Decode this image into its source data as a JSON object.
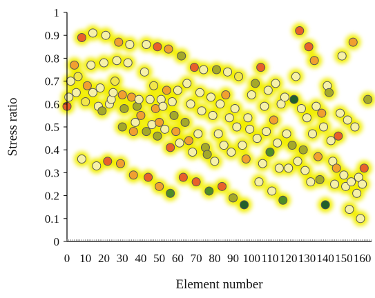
{
  "chart_data": {
    "type": "scatter",
    "title": "",
    "xlabel": "Element number",
    "ylabel": "Stress ratio",
    "xlim": [
      0,
      165
    ],
    "ylim": [
      0,
      1
    ],
    "x_ticks": [
      "0",
      "10",
      "20",
      "30",
      "40",
      "50",
      "60",
      "70",
      "80",
      "90",
      "100",
      "110",
      "120",
      "130",
      "140",
      "150",
      "160"
    ],
    "y_ticks": [
      "0",
      "0.1",
      "0.2",
      "0.3",
      "0.4",
      "0.5",
      "0.6",
      "0.7",
      "0.8",
      "0.9",
      "1"
    ],
    "grid": false,
    "legend": "none",
    "glow_color": "#f2ee00",
    "colors": {
      "red": "#e8602a",
      "orange": "#f0a030",
      "yellow": "#f2e64a",
      "light": "#f6f1a8",
      "olive": "#a4a82a",
      "green": "#4e8c26",
      "dark": "#22602a"
    },
    "points": [
      {
        "x": 0,
        "y": 0.59,
        "c": "red"
      },
      {
        "x": 1,
        "y": 0.63,
        "c": "light"
      },
      {
        "x": 2,
        "y": 0.7,
        "c": "light"
      },
      {
        "x": 4,
        "y": 0.77,
        "c": "orange"
      },
      {
        "x": 5,
        "y": 0.65,
        "c": "light"
      },
      {
        "x": 6,
        "y": 0.72,
        "c": "yellow"
      },
      {
        "x": 8,
        "y": 0.89,
        "c": "red"
      },
      {
        "x": 8,
        "y": 0.36,
        "c": "light"
      },
      {
        "x": 10,
        "y": 0.61,
        "c": "yellow"
      },
      {
        "x": 11,
        "y": 0.68,
        "c": "orange"
      },
      {
        "x": 13,
        "y": 0.77,
        "c": "light"
      },
      {
        "x": 14,
        "y": 0.91,
        "c": "light"
      },
      {
        "x": 14,
        "y": 0.65,
        "c": "light"
      },
      {
        "x": 16,
        "y": 0.33,
        "c": "light"
      },
      {
        "x": 17,
        "y": 0.59,
        "c": "light"
      },
      {
        "x": 18,
        "y": 0.67,
        "c": "light"
      },
      {
        "x": 19,
        "y": 0.57,
        "c": "olive"
      },
      {
        "x": 20,
        "y": 0.78,
        "c": "light"
      },
      {
        "x": 21,
        "y": 0.9,
        "c": "light"
      },
      {
        "x": 22,
        "y": 0.35,
        "c": "red"
      },
      {
        "x": 23,
        "y": 0.6,
        "c": "light"
      },
      {
        "x": 24,
        "y": 0.62,
        "c": "light"
      },
      {
        "x": 25,
        "y": 0.65,
        "c": "light"
      },
      {
        "x": 26,
        "y": 0.7,
        "c": "yellow"
      },
      {
        "x": 27,
        "y": 0.79,
        "c": "light"
      },
      {
        "x": 28,
        "y": 0.87,
        "c": "orange"
      },
      {
        "x": 29,
        "y": 0.34,
        "c": "orange"
      },
      {
        "x": 30,
        "y": 0.64,
        "c": "orange"
      },
      {
        "x": 30,
        "y": 0.5,
        "c": "olive"
      },
      {
        "x": 31,
        "y": 0.58,
        "c": "olive"
      },
      {
        "x": 33,
        "y": 0.78,
        "c": "light"
      },
      {
        "x": 34,
        "y": 0.86,
        "c": "light"
      },
      {
        "x": 35,
        "y": 0.63,
        "c": "orange"
      },
      {
        "x": 36,
        "y": 0.29,
        "c": "orange"
      },
      {
        "x": 36,
        "y": 0.48,
        "c": "orange"
      },
      {
        "x": 37,
        "y": 0.52,
        "c": "light"
      },
      {
        "x": 38,
        "y": 0.59,
        "c": "olive"
      },
      {
        "x": 39,
        "y": 0.62,
        "c": "light"
      },
      {
        "x": 40,
        "y": 0.55,
        "c": "orange"
      },
      {
        "x": 42,
        "y": 0.74,
        "c": "light"
      },
      {
        "x": 43,
        "y": 0.86,
        "c": "light"
      },
      {
        "x": 43,
        "y": 0.48,
        "c": "olive"
      },
      {
        "x": 44,
        "y": 0.28,
        "c": "red"
      },
      {
        "x": 45,
        "y": 0.62,
        "c": "light"
      },
      {
        "x": 46,
        "y": 0.51,
        "c": "light"
      },
      {
        "x": 47,
        "y": 0.68,
        "c": "yellow"
      },
      {
        "x": 48,
        "y": 0.58,
        "c": "orange"
      },
      {
        "x": 49,
        "y": 0.85,
        "c": "red"
      },
      {
        "x": 49,
        "y": 0.46,
        "c": "olive"
      },
      {
        "x": 50,
        "y": 0.24,
        "c": "orange"
      },
      {
        "x": 50,
        "y": 0.52,
        "c": "orange"
      },
      {
        "x": 51,
        "y": 0.62,
        "c": "light"
      },
      {
        "x": 52,
        "y": 0.59,
        "c": "light"
      },
      {
        "x": 53,
        "y": 0.49,
        "c": "light"
      },
      {
        "x": 54,
        "y": 0.66,
        "c": "orange"
      },
      {
        "x": 55,
        "y": 0.84,
        "c": "orange"
      },
      {
        "x": 56,
        "y": 0.41,
        "c": "red"
      },
      {
        "x": 56,
        "y": 0.21,
        "c": "green"
      },
      {
        "x": 57,
        "y": 0.61,
        "c": "light"
      },
      {
        "x": 58,
        "y": 0.55,
        "c": "olive"
      },
      {
        "x": 59,
        "y": 0.48,
        "c": "orange"
      },
      {
        "x": 60,
        "y": 0.66,
        "c": "light"
      },
      {
        "x": 61,
        "y": 0.43,
        "c": "light"
      },
      {
        "x": 62,
        "y": 0.81,
        "c": "olive"
      },
      {
        "x": 63,
        "y": 0.28,
        "c": "red"
      },
      {
        "x": 64,
        "y": 0.52,
        "c": "olive"
      },
      {
        "x": 65,
        "y": 0.69,
        "c": "light"
      },
      {
        "x": 66,
        "y": 0.44,
        "c": "orange"
      },
      {
        "x": 67,
        "y": 0.6,
        "c": "light"
      },
      {
        "x": 68,
        "y": 0.39,
        "c": "light"
      },
      {
        "x": 69,
        "y": 0.76,
        "c": "red"
      },
      {
        "x": 70,
        "y": 0.26,
        "c": "red"
      },
      {
        "x": 71,
        "y": 0.47,
        "c": "light"
      },
      {
        "x": 72,
        "y": 0.65,
        "c": "light"
      },
      {
        "x": 73,
        "y": 0.57,
        "c": "light"
      },
      {
        "x": 74,
        "y": 0.75,
        "c": "light"
      },
      {
        "x": 75,
        "y": 0.41,
        "c": "olive"
      },
      {
        "x": 76,
        "y": 0.38,
        "c": "olive"
      },
      {
        "x": 77,
        "y": 0.22,
        "c": "green"
      },
      {
        "x": 78,
        "y": 0.63,
        "c": "light"
      },
      {
        "x": 79,
        "y": 0.55,
        "c": "light"
      },
      {
        "x": 80,
        "y": 0.35,
        "c": "light"
      },
      {
        "x": 81,
        "y": 0.75,
        "c": "olive"
      },
      {
        "x": 82,
        "y": 0.47,
        "c": "light"
      },
      {
        "x": 83,
        "y": 0.6,
        "c": "light"
      },
      {
        "x": 84,
        "y": 0.24,
        "c": "red"
      },
      {
        "x": 85,
        "y": 0.42,
        "c": "light"
      },
      {
        "x": 86,
        "y": 0.64,
        "c": "orange"
      },
      {
        "x": 87,
        "y": 0.74,
        "c": "light"
      },
      {
        "x": 88,
        "y": 0.54,
        "c": "light"
      },
      {
        "x": 89,
        "y": 0.39,
        "c": "light"
      },
      {
        "x": 90,
        "y": 0.19,
        "c": "olive"
      },
      {
        "x": 91,
        "y": 0.58,
        "c": "light"
      },
      {
        "x": 92,
        "y": 0.5,
        "c": "light"
      },
      {
        "x": 93,
        "y": 0.72,
        "c": "yellow"
      },
      {
        "x": 95,
        "y": 0.42,
        "c": "light"
      },
      {
        "x": 96,
        "y": 0.16,
        "c": "dark"
      },
      {
        "x": 97,
        "y": 0.36,
        "c": "orange"
      },
      {
        "x": 98,
        "y": 0.54,
        "c": "light"
      },
      {
        "x": 99,
        "y": 0.49,
        "c": "light"
      },
      {
        "x": 100,
        "y": 0.64,
        "c": "light"
      },
      {
        "x": 102,
        "y": 0.69,
        "c": "olive"
      },
      {
        "x": 103,
        "y": 0.45,
        "c": "light"
      },
      {
        "x": 104,
        "y": 0.26,
        "c": "light"
      },
      {
        "x": 105,
        "y": 0.76,
        "c": "red"
      },
      {
        "x": 106,
        "y": 0.34,
        "c": "light"
      },
      {
        "x": 107,
        "y": 0.59,
        "c": "light"
      },
      {
        "x": 108,
        "y": 0.48,
        "c": "light"
      },
      {
        "x": 109,
        "y": 0.66,
        "c": "light"
      },
      {
        "x": 110,
        "y": 0.39,
        "c": "green"
      },
      {
        "x": 111,
        "y": 0.22,
        "c": "light"
      },
      {
        "x": 112,
        "y": 0.53,
        "c": "orange"
      },
      {
        "x": 113,
        "y": 0.69,
        "c": "light"
      },
      {
        "x": 114,
        "y": 0.43,
        "c": "light"
      },
      {
        "x": 115,
        "y": 0.32,
        "c": "light"
      },
      {
        "x": 116,
        "y": 0.6,
        "c": "light"
      },
      {
        "x": 117,
        "y": 0.18,
        "c": "green"
      },
      {
        "x": 118,
        "y": 0.63,
        "c": "light"
      },
      {
        "x": 119,
        "y": 0.47,
        "c": "light"
      },
      {
        "x": 120,
        "y": 0.32,
        "c": "light"
      },
      {
        "x": 122,
        "y": 0.42,
        "c": "olive"
      },
      {
        "x": 123,
        "y": 0.62,
        "c": "dark"
      },
      {
        "x": 124,
        "y": 0.72,
        "c": "light"
      },
      {
        "x": 125,
        "y": 0.35,
        "c": "light"
      },
      {
        "x": 126,
        "y": 0.92,
        "c": "red"
      },
      {
        "x": 127,
        "y": 0.58,
        "c": "light"
      },
      {
        "x": 128,
        "y": 0.4,
        "c": "olive"
      },
      {
        "x": 129,
        "y": 0.31,
        "c": "light"
      },
      {
        "x": 130,
        "y": 0.54,
        "c": "light"
      },
      {
        "x": 131,
        "y": 0.85,
        "c": "red"
      },
      {
        "x": 132,
        "y": 0.26,
        "c": "light"
      },
      {
        "x": 133,
        "y": 0.47,
        "c": "light"
      },
      {
        "x": 134,
        "y": 0.79,
        "c": "orange"
      },
      {
        "x": 135,
        "y": 0.59,
        "c": "light"
      },
      {
        "x": 136,
        "y": 0.37,
        "c": "orange"
      },
      {
        "x": 137,
        "y": 0.27,
        "c": "olive"
      },
      {
        "x": 138,
        "y": 0.56,
        "c": "orange"
      },
      {
        "x": 139,
        "y": 0.5,
        "c": "light"
      },
      {
        "x": 140,
        "y": 0.16,
        "c": "dark"
      },
      {
        "x": 141,
        "y": 0.68,
        "c": "light"
      },
      {
        "x": 142,
        "y": 0.65,
        "c": "olive"
      },
      {
        "x": 143,
        "y": 0.44,
        "c": "light"
      },
      {
        "x": 144,
        "y": 0.35,
        "c": "light"
      },
      {
        "x": 145,
        "y": 0.25,
        "c": "light"
      },
      {
        "x": 146,
        "y": 0.32,
        "c": "orange"
      },
      {
        "x": 147,
        "y": 0.46,
        "c": "red"
      },
      {
        "x": 148,
        "y": 0.56,
        "c": "light"
      },
      {
        "x": 149,
        "y": 0.81,
        "c": "light"
      },
      {
        "x": 150,
        "y": 0.29,
        "c": "light"
      },
      {
        "x": 151,
        "y": 0.24,
        "c": "light"
      },
      {
        "x": 152,
        "y": 0.53,
        "c": "light"
      },
      {
        "x": 153,
        "y": 0.14,
        "c": "light"
      },
      {
        "x": 154,
        "y": 0.26,
        "c": "light"
      },
      {
        "x": 155,
        "y": 0.87,
        "c": "orange"
      },
      {
        "x": 156,
        "y": 0.5,
        "c": "light"
      },
      {
        "x": 157,
        "y": 0.21,
        "c": "light"
      },
      {
        "x": 158,
        "y": 0.28,
        "c": "light"
      },
      {
        "x": 159,
        "y": 0.1,
        "c": "light"
      },
      {
        "x": 160,
        "y": 0.25,
        "c": "light"
      },
      {
        "x": 161,
        "y": 0.32,
        "c": "red"
      },
      {
        "x": 163,
        "y": 0.62,
        "c": "olive"
      }
    ]
  }
}
